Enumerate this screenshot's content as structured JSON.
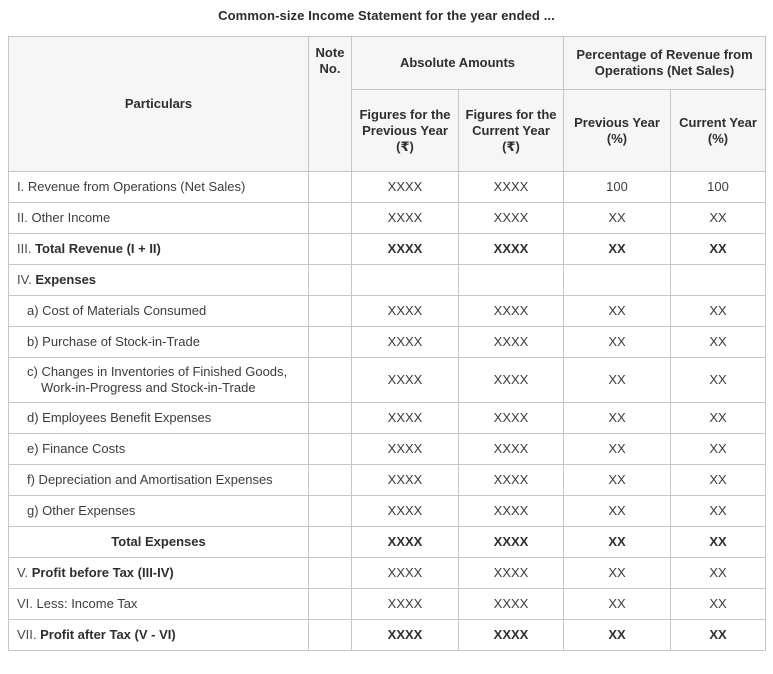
{
  "title": "Common-size Income Statement for the year ended ...",
  "colors": {
    "border": "#c6c6c6",
    "header_background": "#f6f6f7",
    "text": "#3c3c3c",
    "bold_text": "#2f2f2f",
    "page_background": "#ffffff"
  },
  "table": {
    "header": {
      "particulars": "Particulars",
      "note_no": "Note No.",
      "absolute_amounts": "Absolute Amounts",
      "percentage": "Percentage of Revenue from Operations (Net Sales)",
      "sub": [
        "Figures for the Previous Year (₹)",
        "Figures for the Current Year (₹)",
        "Previous Year (%)",
        "Current Year (%)"
      ]
    },
    "rows": [
      {
        "num": "I.",
        "text": "Revenue from Operations (Net Sales)",
        "text2": "",
        "bold": false,
        "indent": false,
        "center": false,
        "boldValues": false,
        "values": [
          "XXXX",
          "XXXX",
          "100",
          "100"
        ]
      },
      {
        "num": "II.",
        "text": "Other Income",
        "text2": "",
        "bold": false,
        "indent": false,
        "center": false,
        "boldValues": false,
        "values": [
          "XXXX",
          "XXXX",
          "XX",
          "XX"
        ]
      },
      {
        "num": "III.",
        "text": "Total Revenue (I + II)",
        "text2": "",
        "bold": true,
        "indent": false,
        "center": false,
        "boldValues": true,
        "values": [
          "XXXX",
          "XXXX",
          "XX",
          "XX"
        ]
      },
      {
        "num": "IV.",
        "text": "Expenses",
        "text2": "",
        "bold": true,
        "indent": false,
        "center": false,
        "boldValues": false,
        "values": [
          "",
          "",
          "",
          ""
        ]
      },
      {
        "num": "",
        "text": "a) Cost of Materials Consumed",
        "text2": "",
        "bold": false,
        "indent": true,
        "center": false,
        "boldValues": false,
        "values": [
          "XXXX",
          "XXXX",
          "XX",
          "XX"
        ]
      },
      {
        "num": "",
        "text": "b) Purchase of Stock-in-Trade",
        "text2": "",
        "bold": false,
        "indent": true,
        "center": false,
        "boldValues": false,
        "values": [
          "XXXX",
          "XXXX",
          "XX",
          "XX"
        ]
      },
      {
        "num": "",
        "text": "c) Changes in Inventories of Finished Goods,",
        "text2": "Work-in-Progress and Stock-in-Trade",
        "bold": false,
        "indent": true,
        "center": false,
        "boldValues": false,
        "values": [
          "XXXX",
          "XXXX",
          "XX",
          "XX"
        ]
      },
      {
        "num": "",
        "text": "d) Employees Benefit Expenses",
        "text2": "",
        "bold": false,
        "indent": true,
        "center": false,
        "boldValues": false,
        "values": [
          "XXXX",
          "XXXX",
          "XX",
          "XX"
        ]
      },
      {
        "num": "",
        "text": "e) Finance Costs",
        "text2": "",
        "bold": false,
        "indent": true,
        "center": false,
        "boldValues": false,
        "values": [
          "XXXX",
          "XXXX",
          "XX",
          "XX"
        ]
      },
      {
        "num": "",
        "text": "f) Depreciation and Amortisation Expenses",
        "text2": "",
        "bold": false,
        "indent": true,
        "center": false,
        "boldValues": false,
        "values": [
          "XXXX",
          "XXXX",
          "XX",
          "XX"
        ]
      },
      {
        "num": "",
        "text": "g) Other Expenses",
        "text2": "",
        "bold": false,
        "indent": true,
        "center": false,
        "boldValues": false,
        "values": [
          "XXXX",
          "XXXX",
          "XX",
          "XX"
        ]
      },
      {
        "num": "",
        "text": "Total Expenses",
        "text2": "",
        "bold": true,
        "indent": false,
        "center": true,
        "boldValues": true,
        "values": [
          "XXXX",
          "XXXX",
          "XX",
          "XX"
        ]
      },
      {
        "num": "V.",
        "text": "Profit before Tax (III-IV)",
        "text2": "",
        "bold": true,
        "indent": false,
        "center": false,
        "boldValues": false,
        "values": [
          "XXXX",
          "XXXX",
          "XX",
          "XX"
        ]
      },
      {
        "num": "VI.",
        "text": "Less: Income Tax",
        "text2": "",
        "bold": false,
        "indent": false,
        "center": false,
        "boldValues": false,
        "values": [
          "XXXX",
          "XXXX",
          "XX",
          "XX"
        ]
      },
      {
        "num": "VII.",
        "text": "Profit after Tax (V - VI)",
        "text2": "",
        "bold": true,
        "indent": false,
        "center": false,
        "boldValues": true,
        "values": [
          "XXXX",
          "XXXX",
          "XX",
          "XX"
        ]
      }
    ]
  }
}
